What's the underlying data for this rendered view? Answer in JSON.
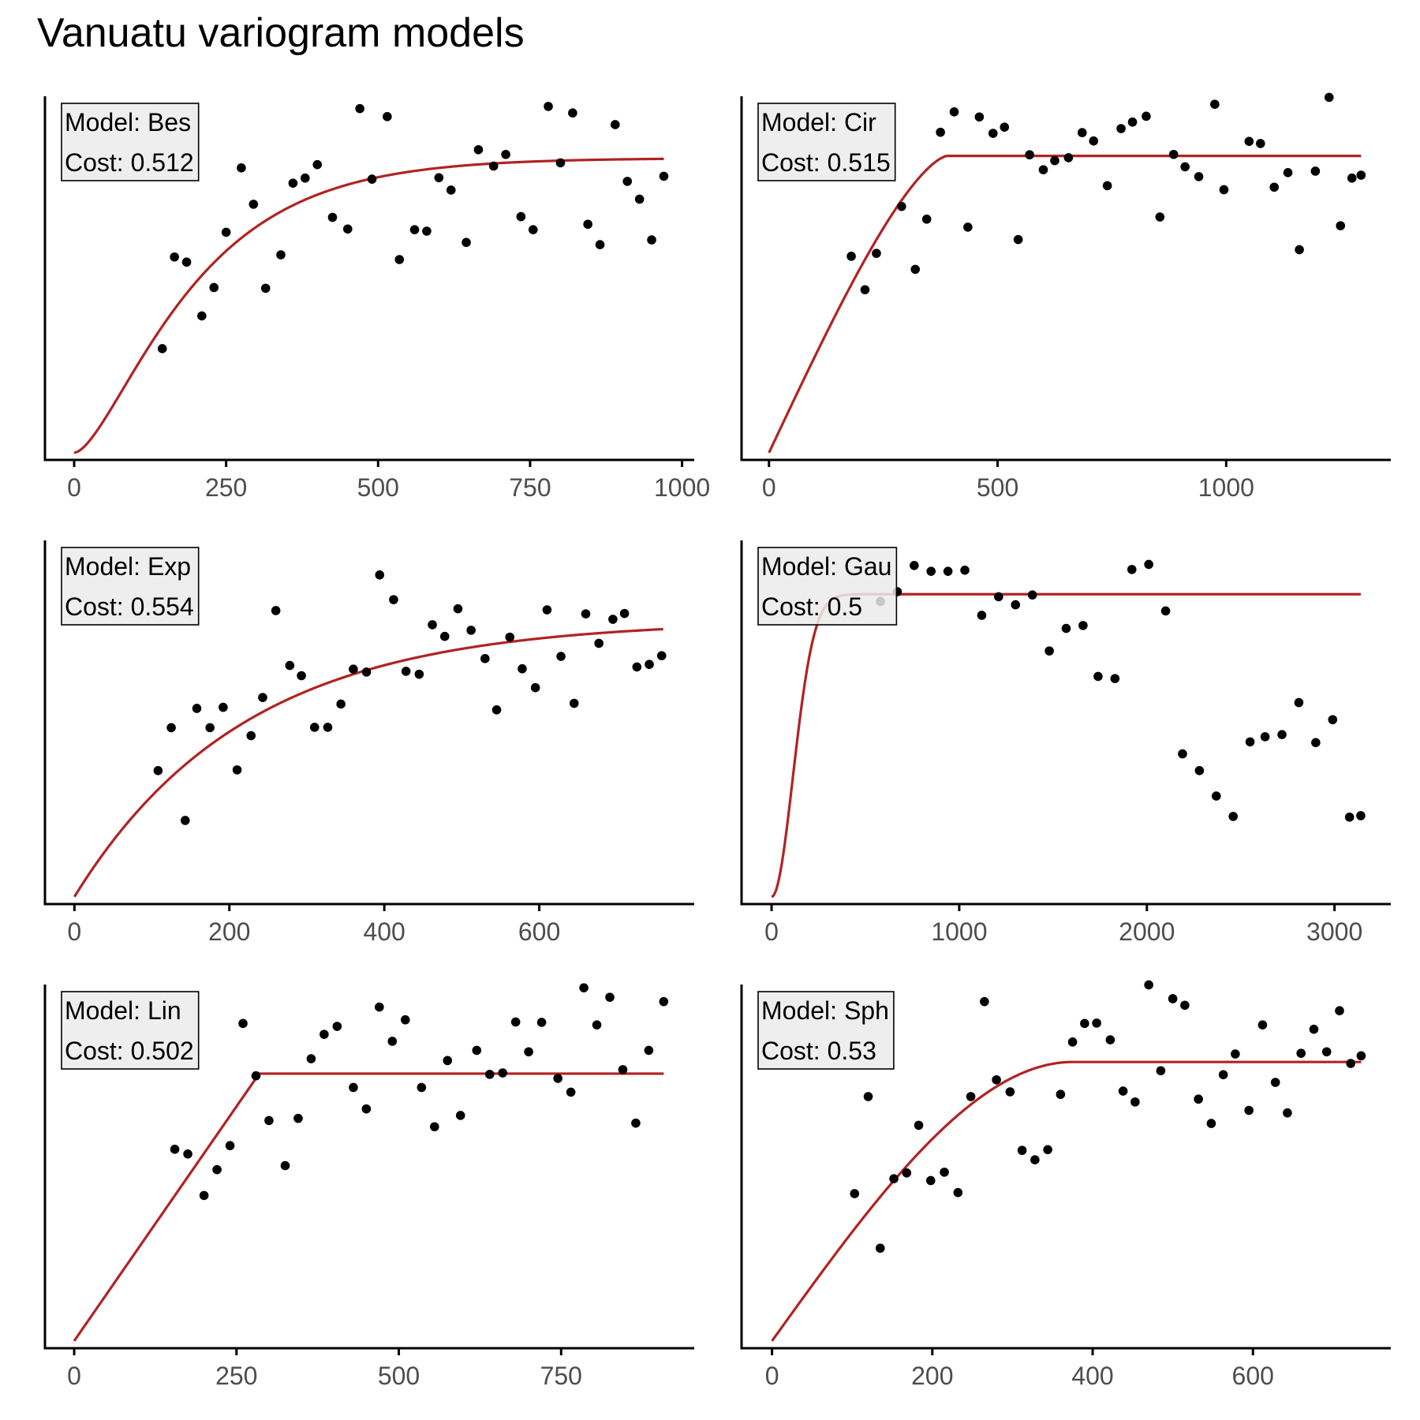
{
  "title": "Vanuatu variogram models",
  "colors": {
    "points": "#000000",
    "curve": "#b22222",
    "axis": "#000000",
    "tick_text": "#4d4d4d",
    "label_box": "#ebebeb"
  },
  "chart_data": [
    {
      "type": "scatter",
      "panel_position": "top-left",
      "model_text": "Model: Bes",
      "cost_text": "Cost: 0.512",
      "model": "Bes",
      "xlim": [
        -48,
        1020
      ],
      "ylim": [
        -0.02,
        0.98
      ],
      "x_ticks": [
        0,
        250,
        500,
        750,
        1000
      ],
      "fit_line": {
        "nugget": 0.0,
        "sill": 0.81,
        "range": 135,
        "x_max": 970
      },
      "points": [
        [
          145,
          0.286
        ],
        [
          165,
          0.538
        ],
        [
          185,
          0.524
        ],
        [
          210,
          0.376
        ],
        [
          230,
          0.454
        ],
        [
          250,
          0.606
        ],
        [
          275,
          0.783
        ],
        [
          295,
          0.683
        ],
        [
          315,
          0.452
        ],
        [
          340,
          0.544
        ],
        [
          360,
          0.741
        ],
        [
          380,
          0.755
        ],
        [
          400,
          0.792
        ],
        [
          425,
          0.647
        ],
        [
          450,
          0.615
        ],
        [
          470,
          0.946
        ],
        [
          490,
          0.752
        ],
        [
          515,
          0.924
        ],
        [
          535,
          0.531
        ],
        [
          560,
          0.613
        ],
        [
          580,
          0.609
        ],
        [
          600,
          0.756
        ],
        [
          620,
          0.722
        ],
        [
          645,
          0.578
        ],
        [
          665,
          0.833
        ],
        [
          690,
          0.788
        ],
        [
          710,
          0.82
        ],
        [
          735,
          0.649
        ],
        [
          755,
          0.613
        ],
        [
          780,
          0.952
        ],
        [
          800,
          0.797
        ],
        [
          820,
          0.934
        ],
        [
          845,
          0.628
        ],
        [
          865,
          0.572
        ],
        [
          890,
          0.902
        ],
        [
          910,
          0.746
        ],
        [
          930,
          0.697
        ],
        [
          950,
          0.585
        ],
        [
          970,
          0.76
        ]
      ]
    },
    {
      "type": "scatter",
      "panel_position": "top-right",
      "model_text": "Model: Cir",
      "cost_text": "Cost: 0.515",
      "model": "Cir",
      "xlim": [
        -60,
        1360
      ],
      "ylim": [
        -0.02,
        0.98
      ],
      "x_ticks": [
        0,
        500,
        1000
      ],
      "fit_line": {
        "nugget": 0.0,
        "sill": 0.816,
        "range": 390,
        "x_max": 1295
      },
      "points": [
        [
          180,
          0.54
        ],
        [
          210,
          0.448
        ],
        [
          235,
          0.548
        ],
        [
          290,
          0.677
        ],
        [
          320,
          0.504
        ],
        [
          345,
          0.642
        ],
        [
          375,
          0.881
        ],
        [
          405,
          0.937
        ],
        [
          435,
          0.62
        ],
        [
          460,
          0.923
        ],
        [
          490,
          0.878
        ],
        [
          515,
          0.895
        ],
        [
          545,
          0.586
        ],
        [
          570,
          0.819
        ],
        [
          600,
          0.778
        ],
        [
          625,
          0.803
        ],
        [
          655,
          0.811
        ],
        [
          685,
          0.88
        ],
        [
          710,
          0.857
        ],
        [
          740,
          0.734
        ],
        [
          770,
          0.891
        ],
        [
          795,
          0.909
        ],
        [
          825,
          0.925
        ],
        [
          855,
          0.648
        ],
        [
          885,
          0.82
        ],
        [
          910,
          0.786
        ],
        [
          940,
          0.759
        ],
        [
          975,
          0.958
        ],
        [
          995,
          0.723
        ],
        [
          1050,
          0.856
        ],
        [
          1075,
          0.85
        ],
        [
          1105,
          0.73
        ],
        [
          1135,
          0.77
        ],
        [
          1160,
          0.558
        ],
        [
          1195,
          0.774
        ],
        [
          1225,
          0.977
        ],
        [
          1250,
          0.624
        ],
        [
          1275,
          0.755
        ],
        [
          1295,
          0.763
        ]
      ]
    },
    {
      "type": "scatter",
      "panel_position": "middle-left",
      "model_text": "Model: Exp",
      "cost_text": "Cost: 0.554",
      "model": "Exp",
      "xlim": [
        -38,
        800
      ],
      "ylim": [
        -0.02,
        0.98
      ],
      "x_ticks": [
        0,
        200,
        400,
        600
      ],
      "fit_line": {
        "nugget": 0.0,
        "sill": 0.76,
        "range": 220,
        "x_max": 760
      },
      "points": [
        [
          108,
          0.347
        ],
        [
          125,
          0.465
        ],
        [
          143,
          0.21
        ],
        [
          158,
          0.518
        ],
        [
          175,
          0.465
        ],
        [
          192,
          0.521
        ],
        [
          210,
          0.349
        ],
        [
          228,
          0.443
        ],
        [
          243,
          0.548
        ],
        [
          260,
          0.787
        ],
        [
          278,
          0.636
        ],
        [
          293,
          0.608
        ],
        [
          310,
          0.466
        ],
        [
          327,
          0.466
        ],
        [
          344,
          0.53
        ],
        [
          360,
          0.626
        ],
        [
          377,
          0.618
        ],
        [
          394,
          0.885
        ],
        [
          412,
          0.817
        ],
        [
          428,
          0.62
        ],
        [
          445,
          0.612
        ],
        [
          462,
          0.748
        ],
        [
          478,
          0.716
        ],
        [
          495,
          0.792
        ],
        [
          512,
          0.733
        ],
        [
          530,
          0.655
        ],
        [
          545,
          0.514
        ],
        [
          562,
          0.714
        ],
        [
          578,
          0.627
        ],
        [
          595,
          0.575
        ],
        [
          610,
          0.789
        ],
        [
          628,
          0.661
        ],
        [
          645,
          0.532
        ],
        [
          660,
          0.778
        ],
        [
          677,
          0.697
        ],
        [
          695,
          0.763
        ],
        [
          710,
          0.779
        ],
        [
          726,
          0.632
        ],
        [
          742,
          0.639
        ],
        [
          758,
          0.663
        ]
      ]
    },
    {
      "type": "scatter",
      "panel_position": "middle-right",
      "model_text": "Model: Gau",
      "cost_text": "Cost: 0.5",
      "model": "Gau",
      "xlim": [
        -160,
        3300
      ],
      "ylim": [
        -0.02,
        0.98
      ],
      "x_ticks": [
        0,
        1000,
        2000,
        3000
      ],
      "fit_line": {
        "nugget": 0.0,
        "sill": 0.832,
        "range": 160,
        "x_max": 3140
      },
      "points": [
        [
          580,
          0.812
        ],
        [
          670,
          0.839
        ],
        [
          760,
          0.911
        ],
        [
          850,
          0.895
        ],
        [
          940,
          0.895
        ],
        [
          1030,
          0.898
        ],
        [
          1120,
          0.774
        ],
        [
          1210,
          0.825
        ],
        [
          1300,
          0.803
        ],
        [
          1390,
          0.83
        ],
        [
          1480,
          0.676
        ],
        [
          1570,
          0.738
        ],
        [
          1660,
          0.746
        ],
        [
          1740,
          0.606
        ],
        [
          1830,
          0.6
        ],
        [
          1920,
          0.9
        ],
        [
          2010,
          0.914
        ],
        [
          2100,
          0.786
        ],
        [
          2190,
          0.393
        ],
        [
          2280,
          0.347
        ],
        [
          2370,
          0.277
        ],
        [
          2460,
          0.221
        ],
        [
          2550,
          0.426
        ],
        [
          2630,
          0.44
        ],
        [
          2720,
          0.446
        ],
        [
          2810,
          0.534
        ],
        [
          2900,
          0.424
        ],
        [
          2990,
          0.487
        ],
        [
          3080,
          0.219
        ],
        [
          3140,
          0.223
        ]
      ]
    },
    {
      "type": "scatter",
      "panel_position": "bottom-left",
      "model_text": "Model: Lin",
      "cost_text": "Cost: 0.502",
      "model": "Lin",
      "xlim": [
        -45,
        955
      ],
      "ylim": [
        -0.02,
        0.98
      ],
      "x_ticks": [
        0,
        250,
        500,
        750
      ],
      "fit_line": {
        "nugget": 0.0,
        "sill": 0.735,
        "range": 285,
        "x_max": 908
      },
      "points": [
        [
          155,
          0.527
        ],
        [
          175,
          0.514
        ],
        [
          200,
          0.4
        ],
        [
          220,
          0.471
        ],
        [
          240,
          0.537
        ],
        [
          260,
          0.873
        ],
        [
          280,
          0.729
        ],
        [
          300,
          0.606
        ],
        [
          325,
          0.482
        ],
        [
          345,
          0.612
        ],
        [
          365,
          0.776
        ],
        [
          385,
          0.843
        ],
        [
          405,
          0.865
        ],
        [
          430,
          0.697
        ],
        [
          450,
          0.638
        ],
        [
          470,
          0.918
        ],
        [
          490,
          0.824
        ],
        [
          510,
          0.883
        ],
        [
          535,
          0.697
        ],
        [
          555,
          0.589
        ],
        [
          575,
          0.771
        ],
        [
          595,
          0.62
        ],
        [
          620,
          0.799
        ],
        [
          640,
          0.733
        ],
        [
          660,
          0.737
        ],
        [
          680,
          0.877
        ],
        [
          700,
          0.795
        ],
        [
          720,
          0.876
        ],
        [
          745,
          0.722
        ],
        [
          765,
          0.684
        ],
        [
          785,
          0.971
        ],
        [
          805,
          0.869
        ],
        [
          825,
          0.945
        ],
        [
          845,
          0.746
        ],
        [
          865,
          0.599
        ],
        [
          885,
          0.799
        ],
        [
          908,
          0.933
        ]
      ]
    },
    {
      "type": "scatter",
      "panel_position": "bottom-right",
      "model_text": "Model: Sph",
      "cost_text": "Cost: 0.53",
      "model": "Sph",
      "xlim": [
        -38,
        772
      ],
      "ylim": [
        -0.02,
        0.98
      ],
      "x_ticks": [
        0,
        200,
        400,
        600
      ],
      "fit_line": {
        "nugget": 0.0,
        "sill": 0.767,
        "range": 375,
        "x_max": 735
      },
      "points": [
        [
          103,
          0.405
        ],
        [
          120,
          0.672
        ],
        [
          135,
          0.255
        ],
        [
          152,
          0.446
        ],
        [
          168,
          0.462
        ],
        [
          183,
          0.593
        ],
        [
          198,
          0.441
        ],
        [
          215,
          0.464
        ],
        [
          232,
          0.408
        ],
        [
          248,
          0.672
        ],
        [
          265,
          0.933
        ],
        [
          280,
          0.718
        ],
        [
          297,
          0.685
        ],
        [
          312,
          0.524
        ],
        [
          328,
          0.498
        ],
        [
          344,
          0.526
        ],
        [
          360,
          0.678
        ],
        [
          375,
          0.822
        ],
        [
          390,
          0.873
        ],
        [
          405,
          0.874
        ],
        [
          422,
          0.828
        ],
        [
          438,
          0.687
        ],
        [
          453,
          0.657
        ],
        [
          470,
          0.979
        ],
        [
          485,
          0.743
        ],
        [
          500,
          0.941
        ],
        [
          515,
          0.923
        ],
        [
          532,
          0.665
        ],
        [
          548,
          0.598
        ],
        [
          563,
          0.732
        ],
        [
          578,
          0.789
        ],
        [
          595,
          0.634
        ],
        [
          612,
          0.869
        ],
        [
          628,
          0.711
        ],
        [
          643,
          0.627
        ],
        [
          660,
          0.791
        ],
        [
          676,
          0.857
        ],
        [
          692,
          0.795
        ],
        [
          708,
          0.908
        ],
        [
          722,
          0.763
        ],
        [
          735,
          0.784
        ]
      ]
    }
  ]
}
